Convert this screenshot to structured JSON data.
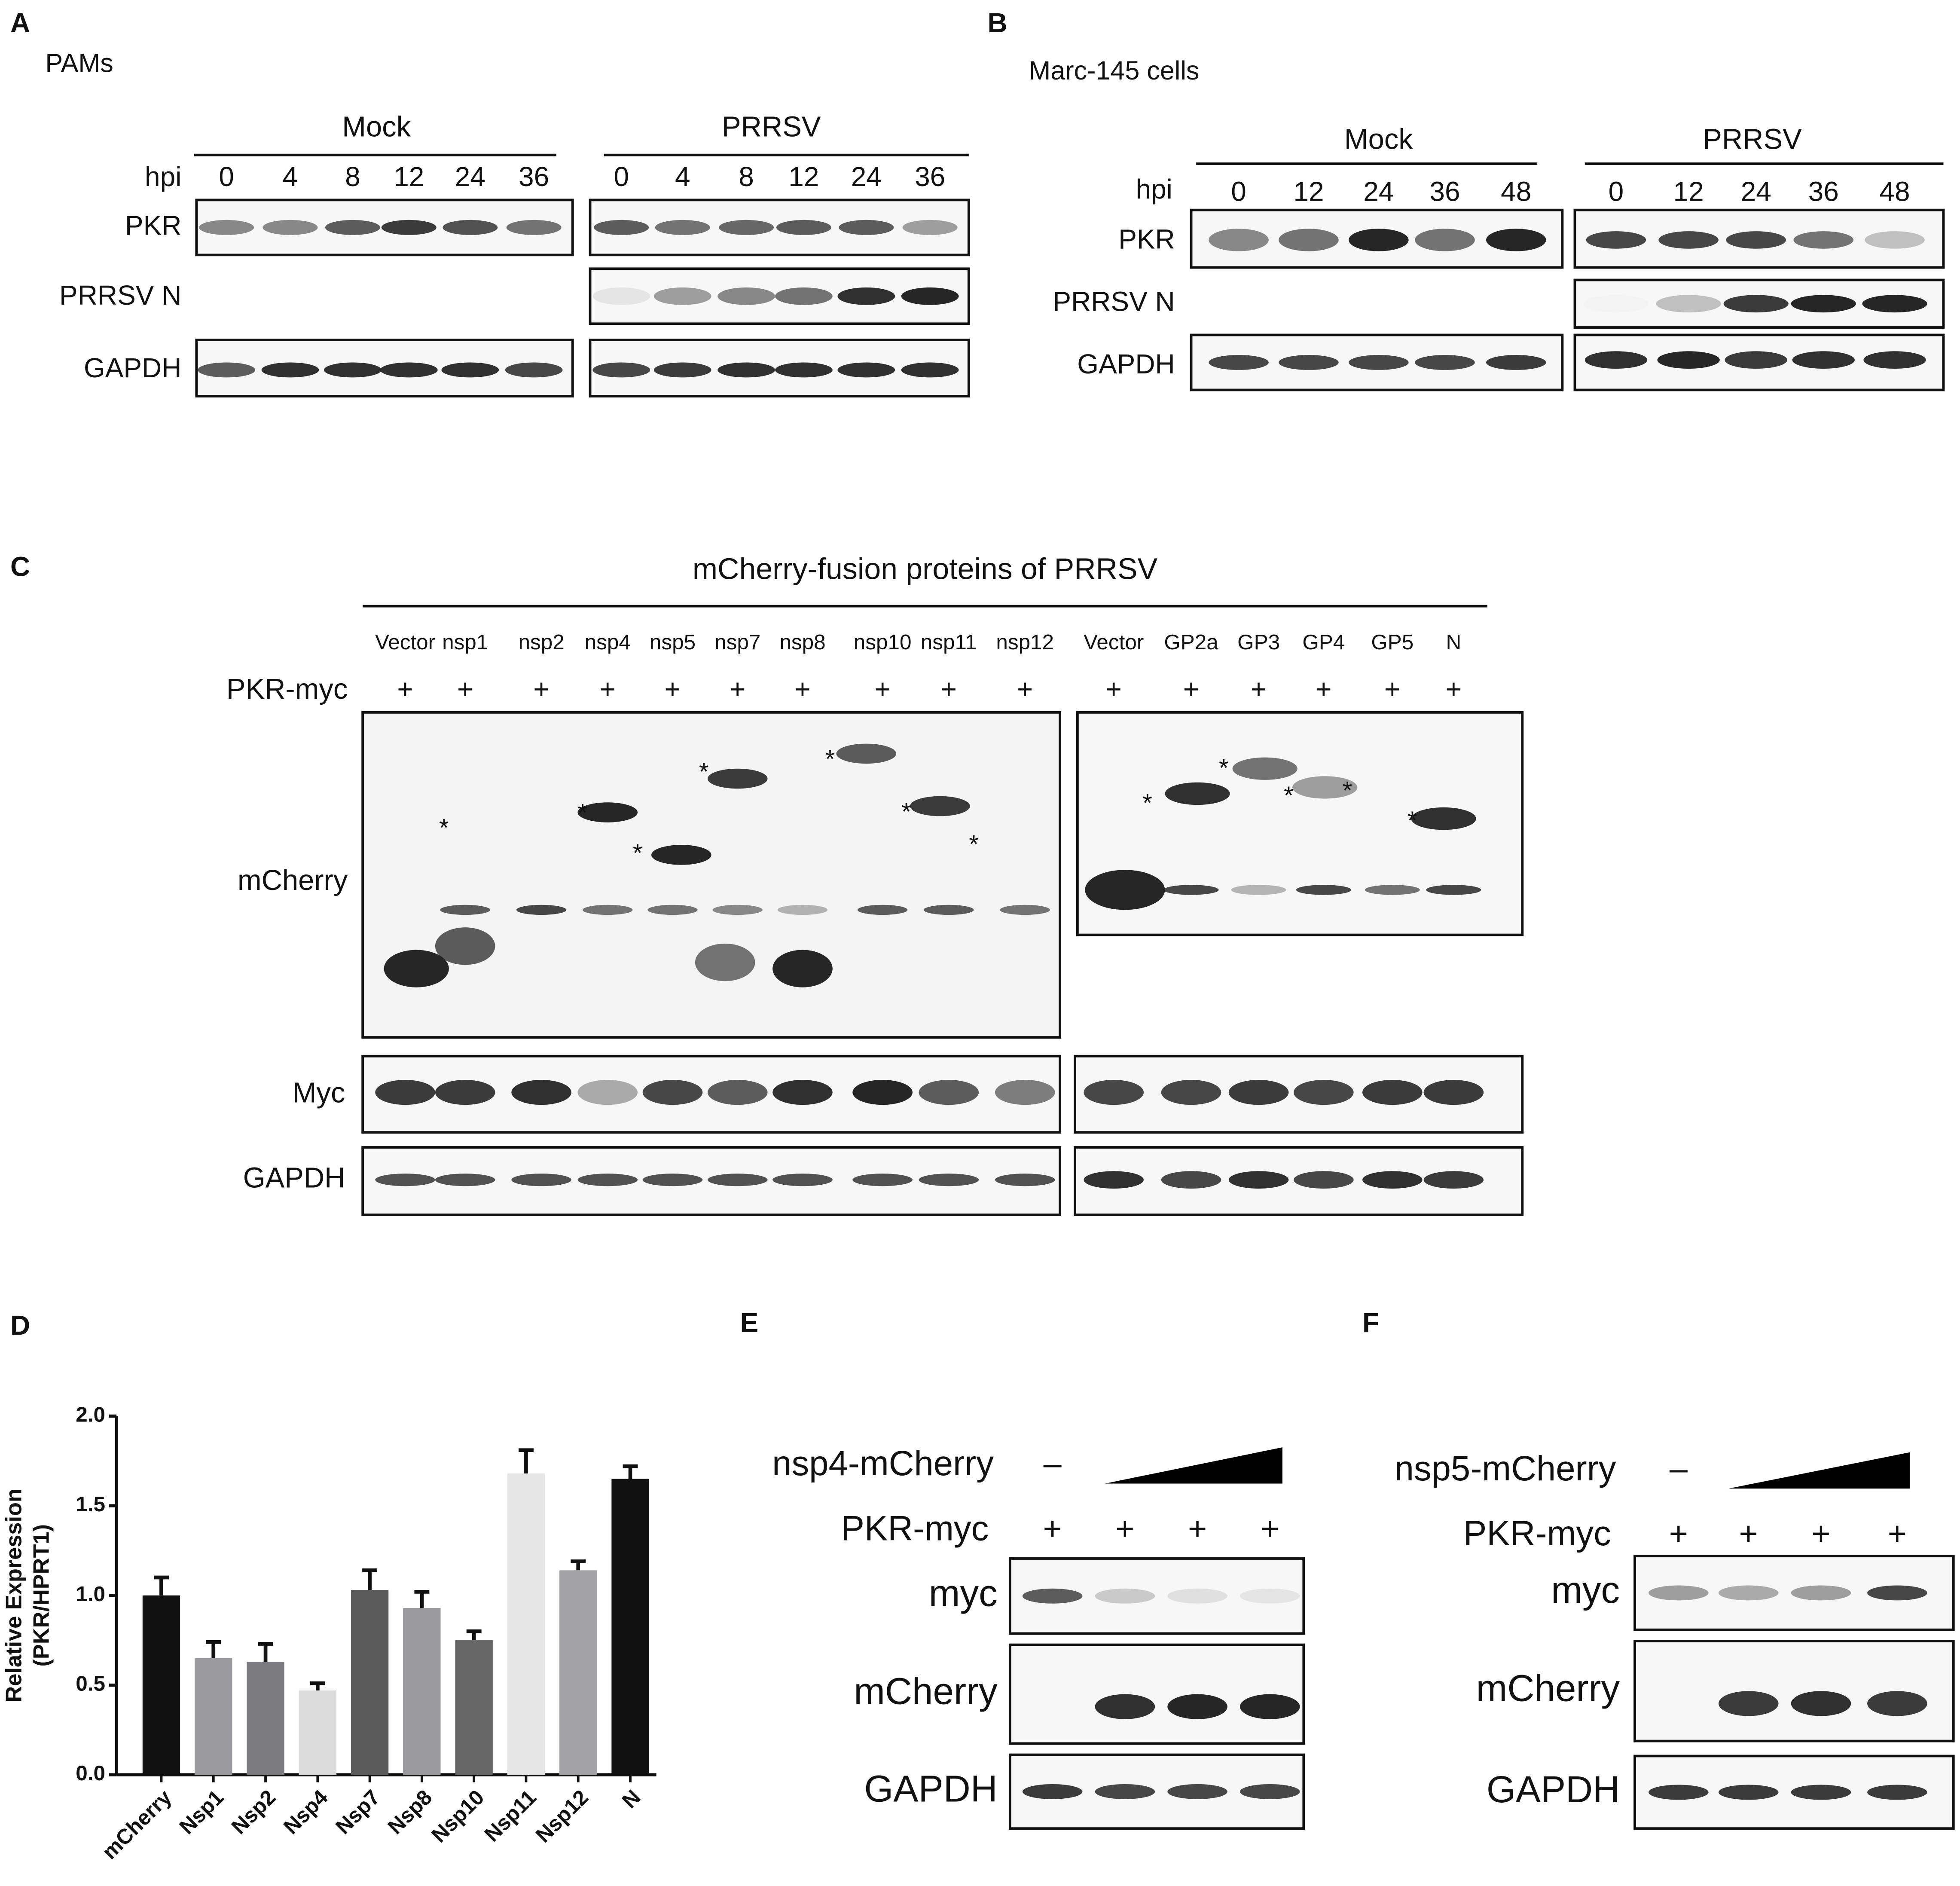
{
  "panels": {
    "A": {
      "label": "A",
      "cell": "PAMs",
      "groups": [
        "Mock",
        "PRRSV"
      ],
      "hpi": "hpi",
      "times": [
        "0",
        "4",
        "8",
        "12",
        "24",
        "36"
      ],
      "rows": [
        "PKR",
        "PRRSV N",
        "GAPDH"
      ]
    },
    "B": {
      "label": "B",
      "cell": "Marc-145 cells",
      "groups": [
        "Mock",
        "PRRSV"
      ],
      "hpi": "hpi",
      "times": [
        "0",
        "12",
        "24",
        "36",
        "48"
      ],
      "rows": [
        "PKR",
        "PRRSV N",
        "GAPDH"
      ]
    },
    "C": {
      "label": "C",
      "header": "mCherry-fusion proteins of PRRSV",
      "lanes_left": [
        "Vector",
        "nsp1",
        "nsp2",
        "nsp4",
        "nsp5",
        "nsp7",
        "nsp8",
        "nsp10",
        "nsp11",
        "nsp12"
      ],
      "lanes_right": [
        "Vector",
        "GP2a",
        "GP3",
        "GP4",
        "GP5",
        "N"
      ],
      "treatment": "PKR-myc",
      "plus": "+",
      "asterisk": "*",
      "rows": [
        "mCherry",
        "Myc",
        "GAPDH"
      ]
    },
    "D": {
      "label": "D"
    },
    "E": {
      "label": "E",
      "construct": "nsp4-mCherry",
      "minus": "–",
      "treatment": "PKR-myc",
      "plus": "+",
      "rows": [
        "myc",
        "mCherry",
        "GAPDH"
      ]
    },
    "F": {
      "label": "F",
      "construct": "nsp5-mCherry",
      "minus": "–",
      "treatment": "PKR-myc",
      "plus": "+",
      "rows": [
        "myc",
        "mCherry",
        "GAPDH"
      ]
    }
  },
  "chart_data": {
    "type": "bar",
    "ylabel": [
      "Relative Expression",
      "(PKR/HPRT1)"
    ],
    "categories": [
      "mCherry",
      "Nsp1",
      "Nsp2",
      "Nsp4",
      "Nsp7",
      "Nsp8",
      "Nsp10",
      "Nsp11",
      "Nsp12",
      "N"
    ],
    "values": [
      1.0,
      0.65,
      0.63,
      0.47,
      1.03,
      0.93,
      0.75,
      1.68,
      1.14,
      1.65
    ],
    "errors": [
      0.1,
      0.09,
      0.1,
      0.04,
      0.11,
      0.09,
      0.05,
      0.13,
      0.05,
      0.07
    ],
    "colors": [
      "#111111",
      "#9b9b9f",
      "#7b7b7f",
      "#dcdcdc",
      "#5a5a5a",
      "#9b9b9f",
      "#666666",
      "#e6e6e6",
      "#a2a2a6",
      "#111111"
    ],
    "ylim": [
      0,
      2
    ],
    "yticks": [
      {
        "value": 0,
        "label": "0.0"
      },
      {
        "value": 0.5,
        "label": "0.5"
      },
      {
        "value": 1,
        "label": "1.0"
      },
      {
        "value": 1.5,
        "label": "1.5"
      },
      {
        "value": 2,
        "label": "2.0"
      }
    ]
  }
}
